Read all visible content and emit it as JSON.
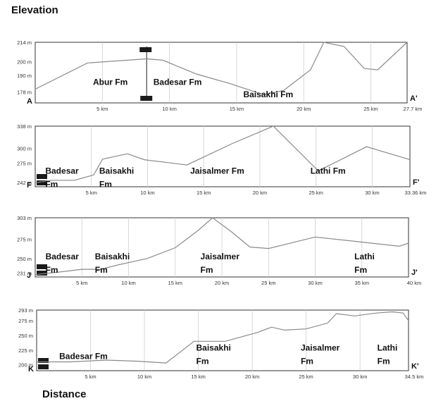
{
  "title": "Elevation",
  "footer": "Distance",
  "chart_data": [
    {
      "type": "line",
      "start_label": "A",
      "end_label": "A'",
      "ylim": [
        170,
        214
      ],
      "y_ticks": [
        {
          "v": 178,
          "label": "178 m"
        },
        {
          "v": 190,
          "label": "190 m"
        },
        {
          "v": 200,
          "label": "200 m"
        },
        {
          "v": 214,
          "label": "214 m"
        }
      ],
      "xlim": [
        0,
        27.7
      ],
      "x_ticks": [
        {
          "v": 5,
          "label": "5 km"
        },
        {
          "v": 10,
          "label": "10 km"
        },
        {
          "v": 15,
          "label": "15 km"
        },
        {
          "v": 20,
          "label": "20 km"
        },
        {
          "v": 25,
          "label": "25 km"
        },
        {
          "v": 27.7,
          "label": "27.7 km"
        }
      ],
      "x": [
        0,
        3.9,
        8.3,
        9.5,
        12,
        14.5,
        17,
        18.5,
        20.5,
        21.5,
        23,
        24.5,
        25.5,
        27.7
      ],
      "y": [
        180,
        199,
        202,
        201,
        191,
        184,
        176,
        179,
        194,
        214,
        211,
        195,
        194,
        214
      ],
      "markers": [
        8.3
      ],
      "formations": [
        {
          "name": [
            "Abur Fm"
          ],
          "x": 4.3,
          "y": 183
        },
        {
          "name": [
            "Badesar Fm"
          ],
          "x": 8.8,
          "y": 183
        },
        {
          "name": [
            "Baisakhi Fm"
          ],
          "x": 15.5,
          "y": 174
        }
      ]
    },
    {
      "type": "line",
      "start_label": "F",
      "end_label": "F'",
      "ylim": [
        235,
        338
      ],
      "y_ticks": [
        {
          "v": 242,
          "label": "242 m"
        },
        {
          "v": 275,
          "label": "275 m"
        },
        {
          "v": 300,
          "label": "300 m"
        },
        {
          "v": 338,
          "label": "338 m"
        }
      ],
      "xlim": [
        0,
        33.36
      ],
      "x_ticks": [
        {
          "v": 5,
          "label": "5 km"
        },
        {
          "v": 10,
          "label": "10 km"
        },
        {
          "v": 15,
          "label": "15 km"
        },
        {
          "v": 20,
          "label": "20 km"
        },
        {
          "v": 25,
          "label": "25 km"
        },
        {
          "v": 30,
          "label": "30 km"
        },
        {
          "v": 33.36,
          "label": "33.36 km"
        }
      ],
      "x": [
        0,
        1.5,
        3.5,
        5.2,
        6,
        8.2,
        9.7,
        13.5,
        17.5,
        21.2,
        25.2,
        29.5,
        33.36
      ],
      "y": [
        242,
        246,
        246,
        255,
        282,
        291,
        281,
        272,
        308,
        338,
        262,
        303,
        281
      ],
      "markers": [],
      "formations": [
        {
          "name": [
            "Badesar",
            "Fm"
          ],
          "x": 0.9,
          "y": 257
        },
        {
          "name": [
            "Baisakhi",
            "Fm"
          ],
          "x": 5.7,
          "y": 257
        },
        {
          "name": [
            "Jaisalmer Fm"
          ],
          "x": 13.8,
          "y": 257
        },
        {
          "name": [
            "Lathi Fm"
          ],
          "x": 24.5,
          "y": 257
        }
      ]
    },
    {
      "type": "line",
      "start_label": "J",
      "end_label": "J'",
      "ylim": [
        226,
        303
      ],
      "y_ticks": [
        {
          "v": 231,
          "label": "231 m"
        },
        {
          "v": 250,
          "label": "250 m"
        },
        {
          "v": 275,
          "label": "275 m"
        },
        {
          "v": 303,
          "label": "303 m"
        }
      ],
      "xlim": [
        0,
        40
      ],
      "x_ticks": [
        {
          "v": 5,
          "label": "5 km"
        },
        {
          "v": 10,
          "label": "10 km"
        },
        {
          "v": 15,
          "label": "15 km"
        },
        {
          "v": 20,
          "label": "20 km"
        },
        {
          "v": 25,
          "label": "25 km"
        },
        {
          "v": 30,
          "label": "30 km"
        },
        {
          "v": 35,
          "label": "35 km"
        },
        {
          "v": 40,
          "label": "40 km"
        }
      ],
      "x": [
        0,
        3,
        5,
        7,
        9,
        12,
        15,
        17.5,
        19,
        21,
        23,
        25,
        28,
        30,
        33,
        36,
        39,
        40
      ],
      "y": [
        229,
        233,
        236,
        236,
        242,
        250,
        264,
        287,
        303,
        285,
        265,
        263,
        272,
        278,
        274,
        270,
        266,
        270
      ],
      "markers": [],
      "formations": [
        {
          "name": [
            "Badesar",
            "Fm"
          ],
          "x": 1.1,
          "y": 249
        },
        {
          "name": [
            "Baisakhi",
            "Fm"
          ],
          "x": 6.4,
          "y": 249
        },
        {
          "name": [
            "Jaisalmer",
            "Fm"
          ],
          "x": 17.7,
          "y": 249
        },
        {
          "name": [
            "Lathi",
            "Fm"
          ],
          "x": 34.2,
          "y": 249
        }
      ]
    },
    {
      "type": "line",
      "start_label": "K",
      "end_label": "K'",
      "ylim": [
        190,
        293
      ],
      "y_ticks": [
        {
          "v": 200,
          "label": "200 m"
        },
        {
          "v": 225,
          "label": "225 m"
        },
        {
          "v": 250,
          "label": "250 m"
        },
        {
          "v": 275,
          "label": "275 m"
        },
        {
          "v": 293,
          "label": "293 m"
        }
      ],
      "xlim": [
        0,
        34.5
      ],
      "x_ticks": [
        {
          "v": 5,
          "label": "5 km"
        },
        {
          "v": 10,
          "label": "10 km"
        },
        {
          "v": 15,
          "label": "15 km"
        },
        {
          "v": 20,
          "label": "20 km"
        },
        {
          "v": 25,
          "label": "25 km"
        },
        {
          "v": 30,
          "label": "30 km"
        },
        {
          "v": 34.5,
          "label": "34.5 km"
        }
      ],
      "x": [
        0,
        3,
        6.5,
        9.5,
        12,
        14.6,
        17.5,
        20.5,
        21.8,
        23,
        25,
        27,
        27.8,
        29.5,
        31.5,
        33,
        34,
        34.5
      ],
      "y": [
        205,
        205,
        208,
        206,
        203,
        240,
        240,
        255,
        264,
        259,
        261,
        271,
        287,
        283,
        288,
        290,
        288,
        275
      ],
      "markers": [],
      "formations": [
        {
          "name": [
            "Badesar Fm"
          ],
          "x": 2.1,
          "y": 210
        },
        {
          "name": [
            "Baisakhi",
            "Fm"
          ],
          "x": 14.8,
          "y": 224
        },
        {
          "name": [
            "Jaisalmer",
            "Fm"
          ],
          "x": 24.5,
          "y": 224
        },
        {
          "name": [
            "Lathi",
            "Fm"
          ],
          "x": 31.6,
          "y": 224
        }
      ]
    }
  ]
}
